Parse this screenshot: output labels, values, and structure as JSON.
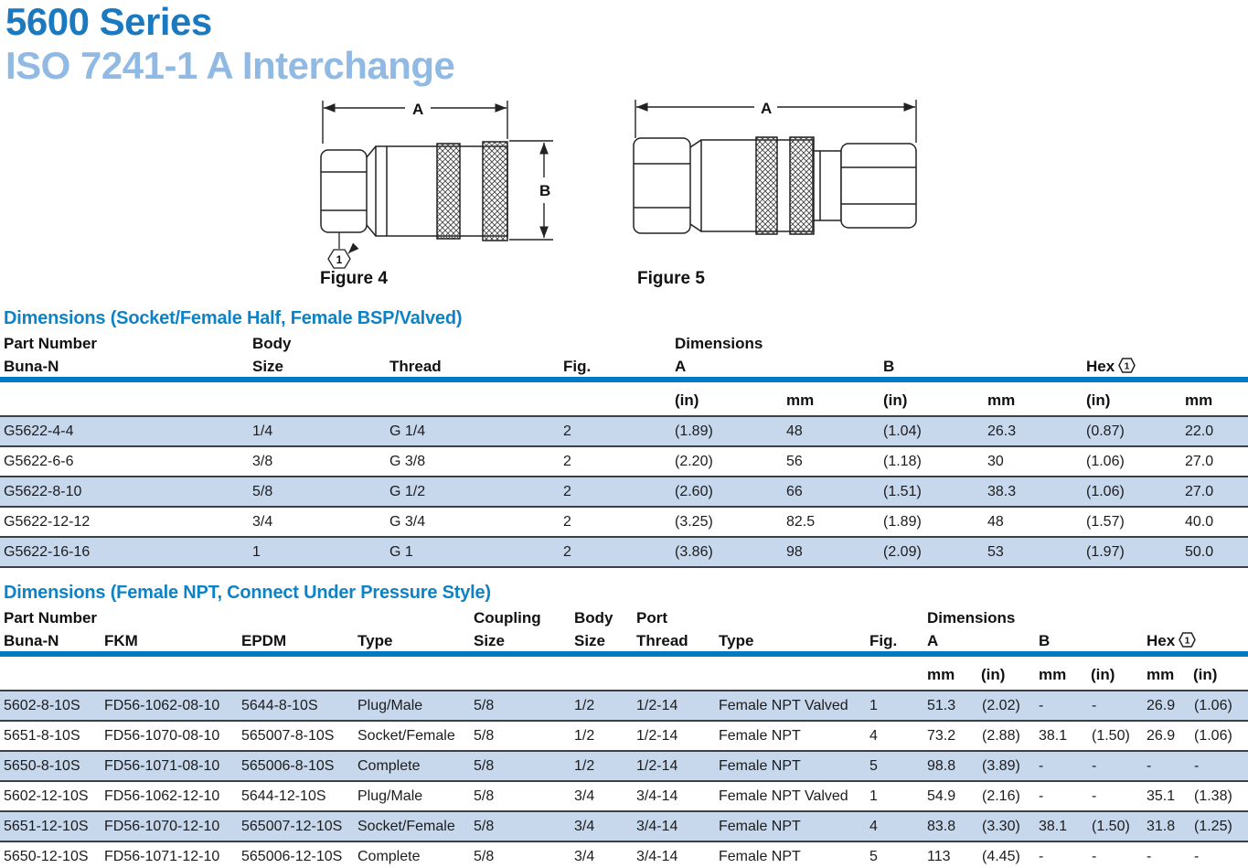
{
  "page": {
    "title_line1": "5600 Series",
    "title_line2": "ISO 7241-1 A Interchange"
  },
  "colors": {
    "title_blue": "#1b79c0",
    "subtitle_blue": "#90b9e4",
    "section_blue": "#0e82c6",
    "rule_blue": "#0079c4",
    "row_shade": "#c7d7ec",
    "line_dark": "#3f3f3f"
  },
  "figures": [
    {
      "caption": "Figure 4",
      "dim_a": "A",
      "dim_b": "B",
      "callout": "1"
    },
    {
      "caption": "Figure 5",
      "dim_a": "A"
    }
  ],
  "tables": [
    {
      "title": "Dimensions (Socket/Female Half, Female BSP/Valved)",
      "header": {
        "part_number": "Part Number",
        "buna": "Buna-N",
        "body": "Body",
        "size": "Size",
        "thread": "Thread",
        "fig": "Fig.",
        "dimensions": "Dimensions",
        "a": "A",
        "b": "B",
        "hex": "Hex",
        "hex_note": "1"
      },
      "units": [
        "(in)",
        "mm",
        "(in)",
        "mm",
        "(in)",
        "mm"
      ],
      "rows": [
        {
          "cells": [
            "G5622-4-4",
            "1/4",
            "G 1/4",
            "2",
            "(1.89)",
            "48",
            "(1.04)",
            "26.3",
            "(0.87)",
            "22.0"
          ]
        },
        {
          "cells": [
            "G5622-6-6",
            "3/8",
            "G 3/8",
            "2",
            "(2.20)",
            "56",
            "(1.18)",
            "30",
            "(1.06)",
            "27.0"
          ]
        },
        {
          "cells": [
            "G5622-8-10",
            "5/8",
            "G 1/2",
            "2",
            "(2.60)",
            "66",
            "(1.51)",
            "38.3",
            "(1.06)",
            "27.0"
          ]
        },
        {
          "cells": [
            "G5622-12-12",
            "3/4",
            "G 3/4",
            "2",
            "(3.25)",
            "82.5",
            "(1.89)",
            "48",
            "(1.57)",
            "40.0"
          ]
        },
        {
          "cells": [
            "G5622-16-16",
            "1",
            "G 1",
            "2",
            "(3.86)",
            "98",
            "(2.09)",
            "53",
            "(1.97)",
            "50.0"
          ]
        }
      ]
    },
    {
      "title": "Dimensions (Female NPT, Connect Under Pressure Style)",
      "header": {
        "part_number": "Part Number",
        "buna": "Buna-N",
        "fkm": "FKM",
        "epdm": "EPDM",
        "type1": "Type",
        "coupling": "Coupling",
        "coupling_size": "Size",
        "body": "Body",
        "body_size": "Size",
        "port": "Port",
        "port_thread": "Thread",
        "type2": "Type",
        "fig": "Fig.",
        "dimensions": "Dimensions",
        "a": "A",
        "b": "B",
        "hex": "Hex",
        "hex_note": "1"
      },
      "units": [
        "mm",
        "(in)",
        "mm",
        "(in)",
        "mm",
        "(in)"
      ],
      "rows": [
        {
          "cells": [
            "5602-8-10S",
            "FD56-1062-08-10",
            "5644-8-10S",
            "Plug/Male",
            "5/8",
            "1/2",
            "1/2-14",
            "Female NPT Valved",
            "1",
            "51.3",
            "(2.02)",
            "-",
            "-",
            "26.9",
            "(1.06)"
          ]
        },
        {
          "cells": [
            "5651-8-10S",
            "FD56-1070-08-10",
            "565007-8-10S",
            "Socket/Female",
            "5/8",
            "1/2",
            "1/2-14",
            "Female NPT",
            "4",
            "73.2",
            "(2.88)",
            "38.1",
            "(1.50)",
            "26.9",
            "(1.06)"
          ]
        },
        {
          "cells": [
            "5650-8-10S",
            "FD56-1071-08-10",
            "565006-8-10S",
            "Complete",
            "5/8",
            "1/2",
            "1/2-14",
            "Female NPT",
            "5",
            "98.8",
            "(3.89)",
            "-",
            "-",
            "-",
            "-"
          ]
        },
        {
          "cells": [
            "5602-12-10S",
            "FD56-1062-12-10",
            "5644-12-10S",
            "Plug/Male",
            "5/8",
            "3/4",
            "3/4-14",
            "Female NPT Valved",
            "1",
            "54.9",
            "(2.16)",
            "-",
            "-",
            "35.1",
            "(1.38)"
          ]
        },
        {
          "cells": [
            "5651-12-10S",
            "FD56-1070-12-10",
            "565007-12-10S",
            "Socket/Female",
            "5/8",
            "3/4",
            "3/4-14",
            "Female NPT",
            "4",
            "83.8",
            "(3.30)",
            "38.1",
            "(1.50)",
            "31.8",
            "(1.25)"
          ]
        },
        {
          "cells": [
            "5650-12-10S",
            "FD56-1071-12-10",
            "565006-12-10S",
            "Complete",
            "5/8",
            "3/4",
            "3/4-14",
            "Female NPT",
            "5",
            "113",
            "(4.45)",
            "-",
            "-",
            "-",
            "-"
          ]
        }
      ]
    }
  ]
}
